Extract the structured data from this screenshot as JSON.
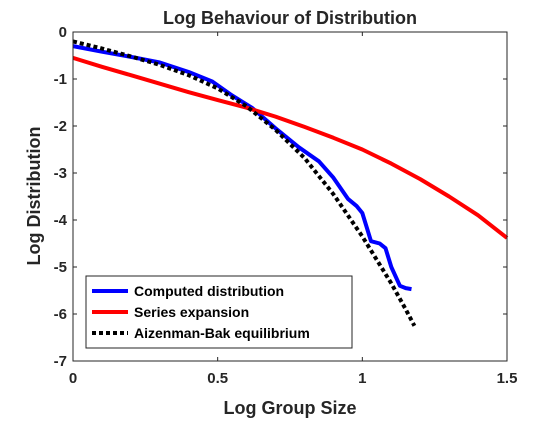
{
  "chart_data": {
    "type": "line",
    "title": "Log Behaviour of Distribution",
    "xlabel": "Log Group Size",
    "ylabel": "Log Distribution",
    "xlim": [
      0,
      1.5
    ],
    "ylim": [
      -7,
      0
    ],
    "xticks": [
      0,
      0.5,
      1,
      1.5
    ],
    "xtick_labels": [
      "0",
      "0.5",
      "1",
      "1.5"
    ],
    "yticks": [
      0,
      -1,
      -2,
      -3,
      -4,
      -5,
      -6,
      -7
    ],
    "ytick_labels": [
      "0",
      "-1",
      "-2",
      "-3",
      "-4",
      "-5",
      "-6",
      "-7"
    ],
    "grid": false,
    "legend_position": "bottom-left",
    "series": [
      {
        "name": "Computed distribution",
        "color": "#0000ff",
        "style": "solid",
        "x": [
          0,
          0.1,
          0.2,
          0.3,
          0.4,
          0.48,
          0.55,
          0.62,
          0.7,
          0.78,
          0.85,
          0.9,
          0.95,
          0.98,
          1.0,
          1.03,
          1.06,
          1.08,
          1.1,
          1.13,
          1.15,
          1.17
        ],
        "y": [
          -0.3,
          -0.42,
          -0.53,
          -0.65,
          -0.85,
          -1.05,
          -1.35,
          -1.62,
          -2.05,
          -2.45,
          -2.75,
          -3.1,
          -3.55,
          -3.7,
          -3.85,
          -4.45,
          -4.5,
          -4.6,
          -5.0,
          -5.4,
          -5.45,
          -5.47
        ]
      },
      {
        "name": "Series expansion",
        "color": "#ff0000",
        "style": "solid",
        "x": [
          0,
          0.1,
          0.2,
          0.3,
          0.4,
          0.5,
          0.6,
          0.7,
          0.8,
          0.9,
          1.0,
          1.1,
          1.2,
          1.3,
          1.4,
          1.5
        ],
        "y": [
          -0.55,
          -0.74,
          -0.92,
          -1.1,
          -1.28,
          -1.45,
          -1.61,
          -1.8,
          -2.02,
          -2.25,
          -2.5,
          -2.8,
          -3.13,
          -3.5,
          -3.9,
          -4.38
        ]
      },
      {
        "name": "Aizenman-Bak equilibrium",
        "color": "#000000",
        "style": "dotted",
        "x": [
          0,
          0.1,
          0.2,
          0.3,
          0.4,
          0.5,
          0.6,
          0.7,
          0.8,
          0.9,
          1.0,
          1.05,
          1.1,
          1.15,
          1.18
        ],
        "y": [
          -0.2,
          -0.35,
          -0.52,
          -0.7,
          -0.92,
          -1.2,
          -1.58,
          -2.08,
          -2.68,
          -3.45,
          -4.35,
          -4.85,
          -5.35,
          -5.9,
          -6.25
        ]
      }
    ]
  }
}
